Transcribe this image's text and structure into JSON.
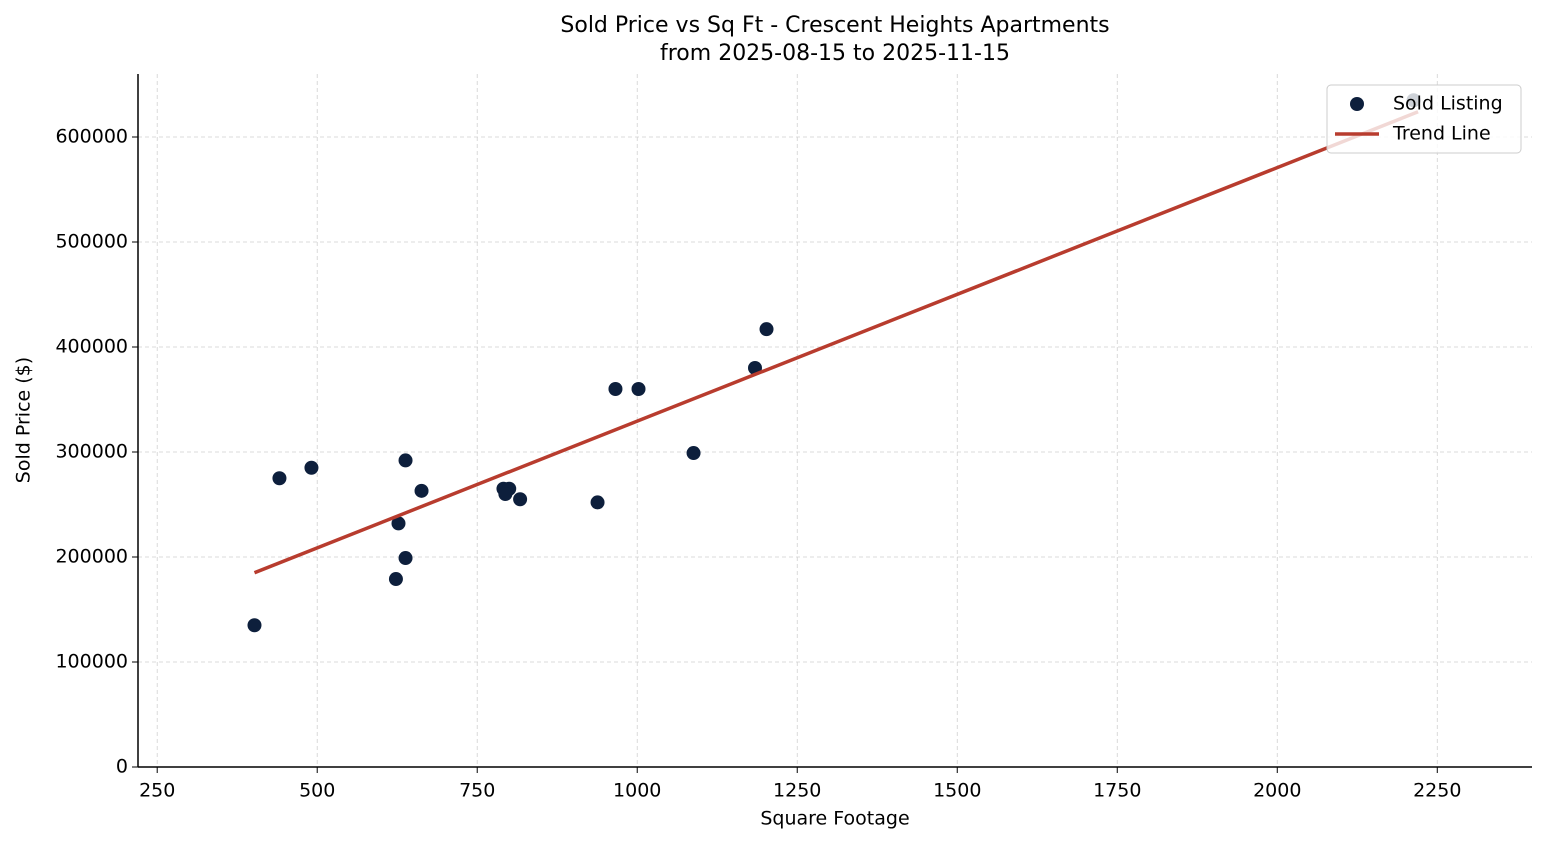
{
  "chart_data": {
    "type": "scatter",
    "title": "Sold Price vs Sq Ft - Crescent Heights Apartments",
    "subtitle": "from 2025-08-15 to 2025-11-15",
    "x_label": "Square Footage",
    "y_label": "Sold Price ($)",
    "xlim": [
      220,
      2398
    ],
    "ylim": [
      0,
      660000
    ],
    "xticks": [
      250,
      500,
      750,
      1000,
      1250,
      1500,
      1750,
      2000,
      2250
    ],
    "yticks": [
      0,
      100000,
      200000,
      300000,
      400000,
      500000,
      600000
    ],
    "grid": true,
    "legend": "upper right",
    "series": [
      {
        "name": "Sold Listing",
        "type": "scatter",
        "color": "#0d1f3c",
        "x": [
          402,
          441,
          491,
          638,
          663,
          627,
          638,
          623,
          791,
          800,
          794,
          817,
          938,
          966,
          1002,
          1088,
          1184,
          1202,
          2213
        ],
        "values": [
          135000,
          275000,
          285000,
          292000,
          263000,
          232000,
          199000,
          179000,
          265000,
          265000,
          260000,
          255000,
          252000,
          360000,
          360000,
          299000,
          380000,
          417000,
          635000
        ]
      },
      {
        "name": "Trend Line",
        "type": "line",
        "color": "#b83c2e",
        "x": [
          402,
          2220
        ],
        "values": [
          185000,
          624000
        ]
      }
    ]
  }
}
